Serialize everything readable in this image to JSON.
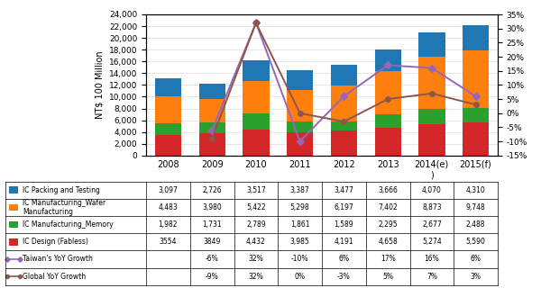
{
  "chart_data": {
    "type": "bar",
    "stacked": true,
    "grid": true,
    "ylabel": "NT$ 100 Million",
    "categories": [
      "2008",
      "2009",
      "2010",
      "2011",
      "2012",
      "2013",
      "2014(e)\n)",
      "2015(f)"
    ],
    "series": [
      {
        "name": "IC Packing and Testing",
        "type": "bar",
        "values": [
          3097,
          2726,
          3517,
          3387,
          3477,
          3666,
          4070,
          4310
        ],
        "value_labels": [
          "3,097",
          "2,726",
          "3,517",
          "3,387",
          "3,477",
          "3,666",
          "4,070",
          "4,310"
        ]
      },
      {
        "name": "IC Manufacturing_Wafer\nManufacturing",
        "type": "bar",
        "values": [
          4483,
          3980,
          5422,
          5298,
          6197,
          7402,
          8873,
          9748
        ],
        "value_labels": [
          "4,483",
          "3,980",
          "5,422",
          "5,298",
          "6,197",
          "7,402",
          "8,873",
          "9,748"
        ]
      },
      {
        "name": "IC Manufacturing_Memory",
        "type": "bar",
        "values": [
          1982,
          1731,
          2789,
          1861,
          1589,
          2295,
          2677,
          2488
        ],
        "value_labels": [
          "1,982",
          "1,731",
          "2,789",
          "1,861",
          "1,589",
          "2,295",
          "2,677",
          "2,488"
        ]
      },
      {
        "name": "IC Design (Fabless)",
        "type": "bar",
        "values": [
          3554,
          3849,
          4432,
          3985,
          4191,
          4658,
          5274,
          5590
        ],
        "value_labels": [
          "3554",
          "3849",
          "4,432",
          "3,985",
          "4,191",
          "4,658",
          "5,274",
          "5,590"
        ]
      },
      {
        "name": "Taiwan's YoY Growth",
        "type": "line",
        "axis": "y2",
        "marker": "diamond",
        "values": [
          null,
          -6,
          32,
          -10,
          6,
          17,
          16,
          6
        ],
        "value_labels": [
          null,
          "-6%",
          "32%",
          "-10%",
          "6%",
          "17%",
          "16%",
          "6%"
        ]
      },
      {
        "name": "Global YoY Growth",
        "type": "line",
        "axis": "y2",
        "marker": "circle",
        "values": [
          null,
          -9,
          32,
          0,
          -3,
          5,
          7,
          3
        ],
        "value_labels": [
          null,
          "-9%",
          "32%",
          "0%",
          "-3%",
          "5%",
          "7%",
          "3%"
        ]
      }
    ],
    "ylim": [
      0,
      24000
    ],
    "yticks": [
      0,
      {
        "value": 2000,
        "label": "2,000"
      },
      {
        "value": 4000,
        "label": "4,000"
      },
      {
        "value": 6000,
        "label": "6,000"
      },
      {
        "value": 8000,
        "label": "8,000"
      },
      {
        "value": 10000,
        "label": "10,000"
      },
      {
        "value": 12000,
        "label": "12,000"
      },
      {
        "value": 14000,
        "label": "14,000"
      },
      {
        "value": 16000,
        "label": "16,000"
      },
      {
        "value": 18000,
        "label": "18,000"
      },
      {
        "value": 20000,
        "label": "20,000"
      },
      {
        "value": 22000,
        "label": "22,000"
      },
      {
        "value": 24000,
        "label": "24,000"
      }
    ],
    "y2lim": [
      -15,
      35
    ],
    "y2ticks": [
      {
        "value": -15,
        "label": "-15%"
      },
      {
        "value": -10,
        "label": "-10%"
      },
      {
        "value": -5,
        "label": "-5%"
      },
      {
        "value": 0,
        "label": "0%"
      },
      {
        "value": 5,
        "label": "5%"
      },
      {
        "value": 10,
        "label": "10%"
      },
      {
        "value": 15,
        "label": "15%"
      },
      {
        "value": 20,
        "label": "20%"
      },
      {
        "value": 25,
        "label": "25%"
      },
      {
        "value": 30,
        "label": "30%"
      },
      {
        "value": 35,
        "label": "35%"
      }
    ]
  }
}
